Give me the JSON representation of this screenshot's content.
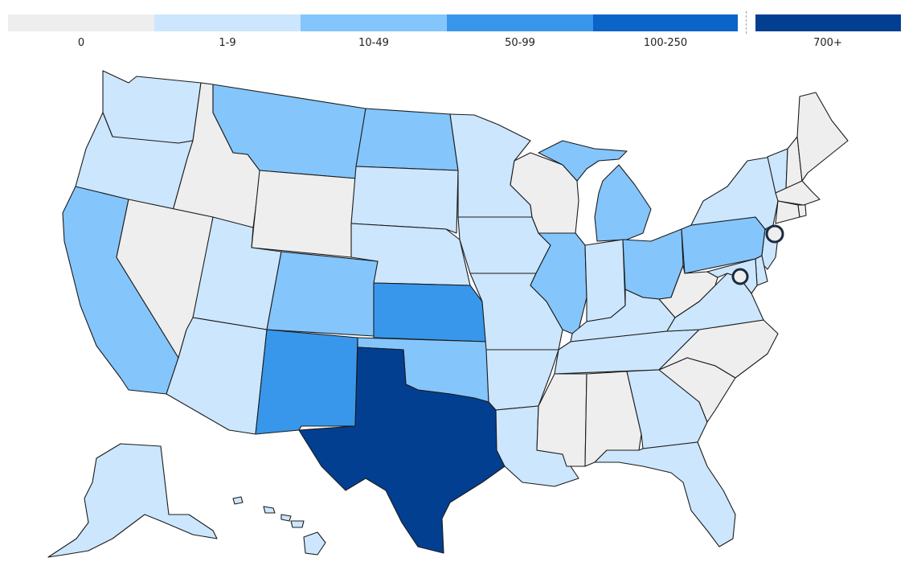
{
  "legend": {
    "bins": [
      {
        "label": "0",
        "color": "#eeeeee"
      },
      {
        "label": "1-9",
        "color": "#cce6fd"
      },
      {
        "label": "10-49",
        "color": "#84c5fb"
      },
      {
        "label": "50-99",
        "color": "#3897ea"
      },
      {
        "label": "100-250",
        "color": "#0b64c8"
      },
      {
        "label": "700+",
        "color": "#033f91"
      }
    ]
  },
  "map": {
    "states": {
      "WA": "1-9",
      "OR": "1-9",
      "CA": "10-49",
      "ID": "0",
      "NV": "0",
      "MT": "10-49",
      "WY": "0",
      "UT": "1-9",
      "AZ": "1-9",
      "CO": "10-49",
      "NM": "50-99",
      "ND": "10-49",
      "SD": "1-9",
      "NE": "1-9",
      "KS": "50-99",
      "OK": "10-49",
      "TX": "700+",
      "MN": "1-9",
      "IA": "1-9",
      "MO": "1-9",
      "AR": "1-9",
      "LA": "1-9",
      "WI": "0",
      "IL": "10-49",
      "MI": "10-49",
      "IN": "1-9",
      "OH": "10-49",
      "KY": "1-9",
      "TN": "1-9",
      "MS": "0",
      "AL": "0",
      "GA": "1-9",
      "FL": "1-9",
      "SC": "0",
      "NC": "0",
      "VA": "1-9",
      "WV": "0",
      "PA": "10-49",
      "NY": "1-9",
      "VT": "1-9",
      "NH": "0",
      "ME": "0",
      "MA": "0",
      "CT": "0",
      "RI": "0",
      "NJ": "1-9",
      "DE": "1-9",
      "MD": "1-9",
      "AK": "1-9",
      "HI": "1-9"
    },
    "markers": [
      "NYC",
      "DC"
    ]
  }
}
